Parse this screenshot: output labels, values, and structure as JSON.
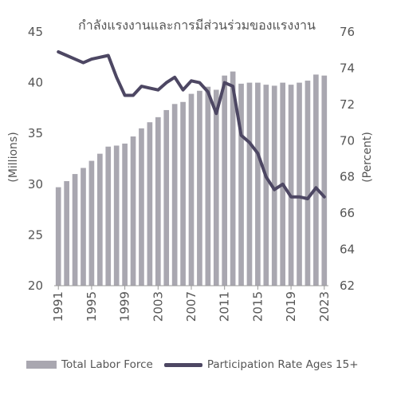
{
  "chart_data": {
    "type": "bar-line-combo",
    "title": "กำลังแรงงานและการมีส่วนร่วมของแรงงาน",
    "ylabel": "(Millions)",
    "y2label": "(Percent)",
    "ylim": [
      20,
      45
    ],
    "y2lim": [
      62,
      76
    ],
    "yticks": [
      20,
      25,
      30,
      35,
      40,
      45
    ],
    "y2ticks": [
      62,
      64,
      66,
      68,
      70,
      72,
      74,
      76
    ],
    "x_tick_labels": [
      "1991",
      "1995",
      "1999",
      "2003",
      "2007",
      "2011",
      "2015",
      "2019",
      "2023"
    ],
    "grid": false,
    "legend_position": "bottom",
    "bars": {
      "name": "Total Labor Force",
      "color": "#a9a7b0",
      "x": [
        1991,
        1992,
        1993,
        1994,
        1995,
        1996,
        1997,
        1998,
        1999,
        2000,
        2001,
        2002,
        2003,
        2004,
        2005,
        2006,
        2007,
        2008,
        2009,
        2010,
        2011,
        2012,
        2013,
        2014,
        2015,
        2016,
        2017,
        2018,
        2019,
        2020,
        2021,
        2022,
        2023
      ],
      "values": [
        29.7,
        30.3,
        31.0,
        31.6,
        32.3,
        33.0,
        33.7,
        33.8,
        34.0,
        34.7,
        35.5,
        36.1,
        36.6,
        37.3,
        37.9,
        38.1,
        38.9,
        39.2,
        39.6,
        39.3,
        40.7,
        41.1,
        39.9,
        40.0,
        40.0,
        39.8,
        39.7,
        40.0,
        39.8,
        40.0,
        40.2,
        40.8,
        40.7
      ]
    },
    "line": {
      "name": "Participation Rate Ages 15+",
      "color": "#4d4763",
      "x": [
        1991,
        1992,
        1993,
        1994,
        1995,
        1996,
        1997,
        1998,
        1999,
        2000,
        2001,
        2002,
        2003,
        2004,
        2005,
        2006,
        2007,
        2008,
        2009,
        2010,
        2011,
        2012,
        2013,
        2014,
        2015,
        2016,
        2017,
        2018,
        2019,
        2020,
        2021,
        2022,
        2023
      ],
      "values": [
        74.9,
        74.7,
        74.5,
        74.3,
        74.5,
        74.6,
        74.7,
        73.5,
        72.5,
        72.5,
        73.0,
        72.9,
        72.8,
        73.2,
        73.5,
        72.8,
        73.3,
        73.2,
        72.7,
        71.5,
        73.2,
        73.0,
        70.3,
        69.9,
        69.3,
        68.0,
        67.3,
        67.6,
        66.9,
        66.9,
        66.8,
        67.4,
        66.9
      ]
    }
  }
}
